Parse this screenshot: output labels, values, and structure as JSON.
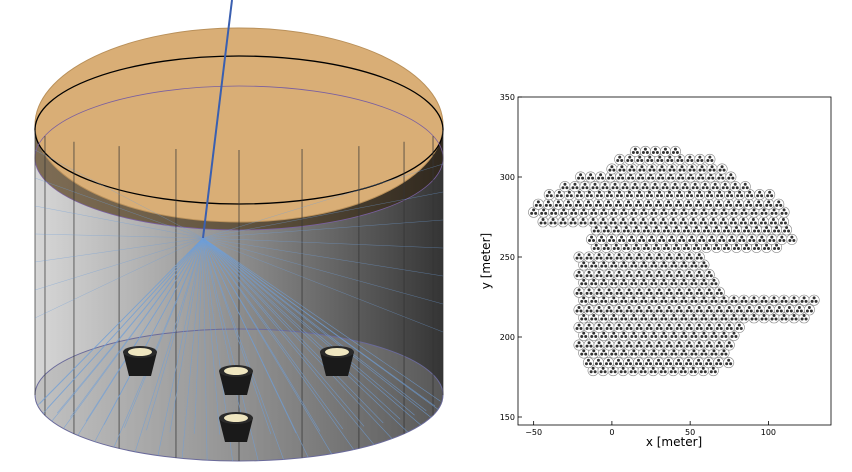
{
  "colors": {
    "water_top": "#d9ae76",
    "tank_light": "#c8c8c8",
    "tank_dark": "#2e2e2e",
    "track": "#3a5fb0",
    "cherenkov": "#6f9fd8",
    "pmt_rim": "#efe6c0"
  },
  "tank": {
    "pmts": [
      {
        "name": "pmt-left"
      },
      {
        "name": "pmt-center"
      },
      {
        "name": "pmt-right"
      },
      {
        "name": "pmt-front"
      }
    ]
  },
  "chart_data": {
    "type": "scatter",
    "title": "",
    "xlabel": "x [meter]",
    "ylabel": "y [meter]",
    "xlim": [
      -60,
      140
    ],
    "ylim": [
      145,
      350
    ],
    "xticks": [
      -50,
      0,
      50,
      100
    ],
    "yticks": [
      150,
      200,
      250,
      300,
      350
    ],
    "xtick_labels": [
      "−50",
      "0",
      "50",
      "100"
    ],
    "ytick_labels": [
      "150",
      "200",
      "250",
      "300",
      "350"
    ],
    "grid": false,
    "legend": "none",
    "station_spacing_m": 6.4,
    "pmts_per_station": 3,
    "rows": [
      {
        "y": 179,
        "x_start": -12,
        "count": 13
      },
      {
        "y": 184,
        "x_start": -15,
        "count": 15
      },
      {
        "y": 190,
        "x_start": -18,
        "count": 15
      },
      {
        "y": 195,
        "x_start": -21,
        "count": 16
      },
      {
        "y": 201,
        "x_start": -18,
        "count": 16
      },
      {
        "y": 206,
        "x_start": -21,
        "count": 17
      },
      {
        "y": 212,
        "x_start": -18,
        "count": 23
      },
      {
        "y": 217,
        "x_start": -21,
        "count": 24
      },
      {
        "y": 223,
        "x_start": -18,
        "count": 24
      },
      {
        "y": 228,
        "x_start": -21,
        "count": 15
      },
      {
        "y": 234,
        "x_start": -18,
        "count": 14
      },
      {
        "y": 239,
        "x_start": -21,
        "count": 14
      },
      {
        "y": 245,
        "x_start": -18,
        "count": 13
      },
      {
        "y": 250,
        "x_start": -21,
        "count": 13
      },
      {
        "y": 256,
        "x_start": -10,
        "count": 19
      },
      {
        "y": 261,
        "x_start": -13,
        "count": 21
      },
      {
        "y": 267,
        "x_start": -10,
        "count": 20
      },
      {
        "y": 272,
        "x_start": -44,
        "count": 25
      },
      {
        "y": 278,
        "x_start": -50,
        "count": 26
      },
      {
        "y": 283,
        "x_start": -47,
        "count": 25
      },
      {
        "y": 289,
        "x_start": -40,
        "count": 23
      },
      {
        "y": 294,
        "x_start": -30,
        "count": 19
      },
      {
        "y": 300,
        "x_start": -20,
        "count": 16
      },
      {
        "y": 305,
        "x_start": 0,
        "count": 12
      },
      {
        "y": 311,
        "x_start": 5,
        "count": 10
      },
      {
        "y": 316,
        "x_start": 15,
        "count": 5
      }
    ]
  }
}
